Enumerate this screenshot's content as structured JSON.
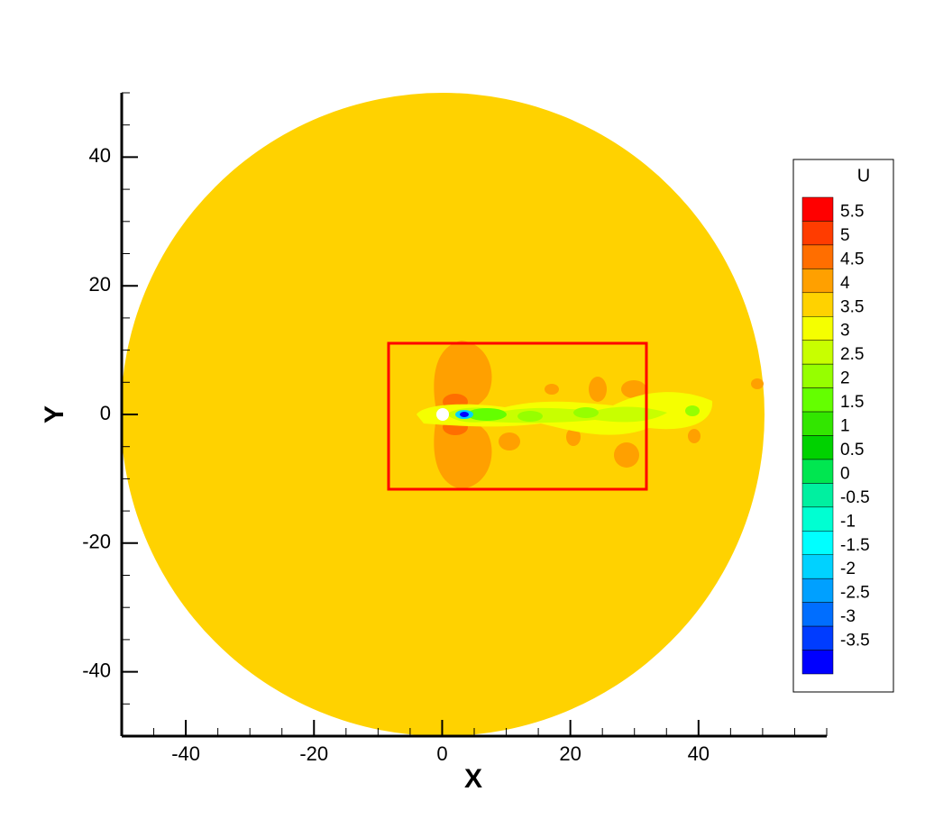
{
  "chart_data": {
    "type": "contour",
    "xlabel": "X",
    "ylabel": "Y",
    "xlim": [
      -50,
      60
    ],
    "ylim": [
      -50,
      50
    ],
    "xticks": [
      -40,
      -20,
      0,
      20,
      40
    ],
    "yticks": [
      -40,
      -20,
      0,
      20,
      40
    ],
    "colorbar": {
      "title": "U",
      "levels": [
        5.5,
        5,
        4.5,
        4,
        3.5,
        3,
        2.5,
        2,
        1.5,
        1,
        0.5,
        0,
        -0.5,
        -1,
        -1.5,
        -2,
        -2.5,
        -3,
        -3.5
      ],
      "colors": [
        "#ff0000",
        "#ff3c00",
        "#ff6e00",
        "#ffa000",
        "#ffd200",
        "#f5ff00",
        "#c8ff00",
        "#96ff00",
        "#64ff00",
        "#32e600",
        "#00d200",
        "#00e650",
        "#00f0a0",
        "#00ffd2",
        "#00ffff",
        "#00d2ff",
        "#00a0ff",
        "#006eff",
        "#003cff",
        "#0000ff"
      ]
    }
  }
}
